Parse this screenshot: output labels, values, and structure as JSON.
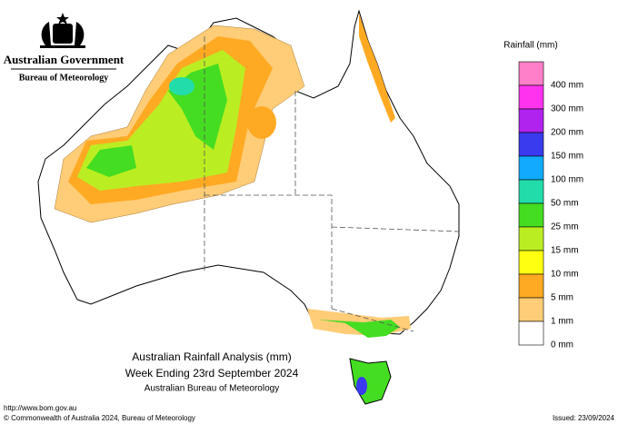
{
  "header": {
    "government": "Australian Government",
    "bureau": "Bureau of Meteorology"
  },
  "legend": {
    "title": "Rainfall (mm)",
    "items": [
      {
        "label": null,
        "color": "#ff7fc8"
      },
      {
        "label": "400 mm",
        "color": "#ff33ee"
      },
      {
        "label": "300 mm",
        "color": "#b022ee"
      },
      {
        "label": "200 mm",
        "color": "#3a3aee"
      },
      {
        "label": "150 mm",
        "color": "#11aaff"
      },
      {
        "label": "100 mm",
        "color": "#22ddaa"
      },
      {
        "label": "50 mm",
        "color": "#44dd22"
      },
      {
        "label": "25 mm",
        "color": "#bbee22"
      },
      {
        "label": "15 mm",
        "color": "#ffff11"
      },
      {
        "label": "10 mm",
        "color": "#ffaa22"
      },
      {
        "label": "5 mm",
        "color": "#ffcc77"
      },
      {
        "label": "1 mm",
        "color": "#ffffff"
      },
      {
        "label": "0 mm",
        "color": null
      }
    ]
  },
  "map": {
    "title": "Australian Rainfall Analysis (mm)",
    "subtitle": "Week Ending 23rd September 2024",
    "source": "Australian Bureau of Meteorology"
  },
  "footer": {
    "url": "http://www.bom.gov.au",
    "copyright": "© Commonwealth of Australia 2024, Bureau of Meteorology",
    "issued": "Issued: 23/09/2024"
  }
}
